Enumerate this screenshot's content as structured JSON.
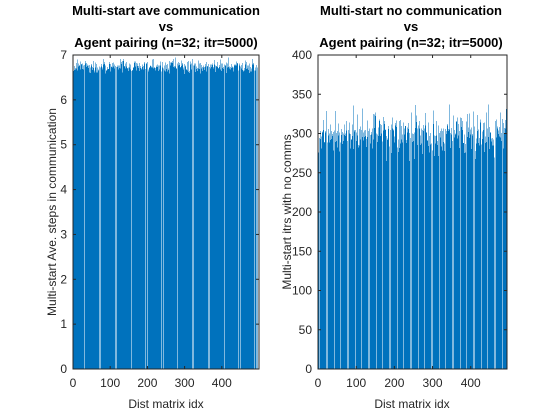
{
  "figure": {
    "bar_color": "#0072BD",
    "axis_color": "#262626",
    "background": "#ffffff"
  },
  "chart_data": [
    {
      "type": "bar",
      "title": [
        "Multi-start ave communication",
        "vs",
        "Agent pairing (n=32; itr=5000)"
      ],
      "xlabel": "Dist matrix idx",
      "ylabel": "Multi-start Ave. steps in communication",
      "xlim": [
        0,
        500
      ],
      "ylim": [
        0,
        7
      ],
      "xticks": [
        0,
        100,
        200,
        300,
        400
      ],
      "yticks": [
        0,
        1,
        2,
        3,
        4,
        5,
        6,
        7
      ],
      "n_bars": 495,
      "value_range": [
        6.55,
        6.95
      ],
      "typical_value": 6.75,
      "note_values": "approximate — 495 bars, values range about 6.55 to 6.95"
    },
    {
      "type": "bar",
      "title": [
        "Multi-start no communication",
        "vs",
        "Agent pairing (n=32; itr=5000)"
      ],
      "xlabel": "Dist matrix idx",
      "ylabel": "Multi-start itrs with no comms",
      "xlim": [
        0,
        495
      ],
      "ylim": [
        0,
        400
      ],
      "xticks": [
        0,
        100,
        200,
        300,
        400
      ],
      "yticks": [
        0,
        50,
        100,
        150,
        200,
        250,
        300,
        350,
        400
      ],
      "n_bars": 495,
      "value_range": [
        265,
        337
      ],
      "typical_value": 300,
      "note_values": "approximate — 495 bars, values range about 265 to 337"
    }
  ]
}
